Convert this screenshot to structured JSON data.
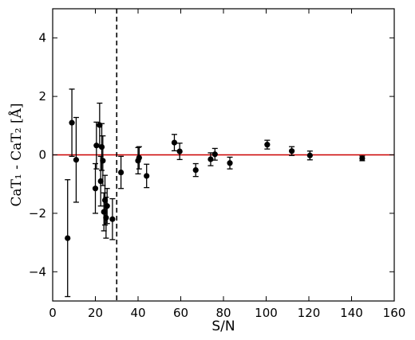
{
  "chart_data": {
    "type": "scatter",
    "title": "",
    "xlabel": "S/N",
    "ylabel": "CaT₁ - CaT₂ [Å]",
    "xlim": [
      0,
      160
    ],
    "ylim": [
      -5,
      5
    ],
    "xticks": [
      0,
      20,
      40,
      60,
      80,
      100,
      120,
      140,
      160
    ],
    "yticks": [
      -4,
      -2,
      0,
      2,
      4
    ],
    "x_tick_labels": [
      "0",
      "20",
      "40",
      "60",
      "80",
      "100",
      "120",
      "140",
      "160"
    ],
    "y_tick_labels": [
      "−4",
      "−2",
      "0",
      "2",
      "4"
    ],
    "grid": false,
    "reference_line": {
      "y": 0,
      "color": "#cc0000"
    },
    "threshold_line": {
      "x": 30,
      "style": "dashed"
    },
    "points": [
      {
        "x": 7,
        "y": -2.85,
        "err": 2.0
      },
      {
        "x": 9,
        "y": 1.1,
        "err": 1.15
      },
      {
        "x": 11,
        "y": -0.17,
        "err": 1.45
      },
      {
        "x": 20,
        "y": -1.15,
        "err": 0.85
      },
      {
        "x": 20.5,
        "y": 0.32,
        "err": 0.8
      },
      {
        "x": 22,
        "y": 1.02,
        "err": 0.75
      },
      {
        "x": 22.5,
        "y": -0.9,
        "err": 0.85
      },
      {
        "x": 23,
        "y": 0.27,
        "err": 0.8
      },
      {
        "x": 23.5,
        "y": -0.2,
        "err": 0.85
      },
      {
        "x": 24,
        "y": -1.95,
        "err": 0.65
      },
      {
        "x": 24.5,
        "y": -1.55,
        "err": 0.85
      },
      {
        "x": 25,
        "y": -2.15,
        "err": 0.7
      },
      {
        "x": 25.5,
        "y": -1.75,
        "err": 0.6
      },
      {
        "x": 28,
        "y": -2.2,
        "err": 0.7
      },
      {
        "x": 32,
        "y": -0.6,
        "err": 0.55
      },
      {
        "x": 40,
        "y": -0.2,
        "err": 0.45
      },
      {
        "x": 40.5,
        "y": -0.1,
        "err": 0.38
      },
      {
        "x": 44,
        "y": -0.72,
        "err": 0.4
      },
      {
        "x": 57,
        "y": 0.42,
        "err": 0.28
      },
      {
        "x": 59.5,
        "y": 0.12,
        "err": 0.28
      },
      {
        "x": 67,
        "y": -0.52,
        "err": 0.22
      },
      {
        "x": 74,
        "y": -0.15,
        "err": 0.22
      },
      {
        "x": 76,
        "y": 0.02,
        "err": 0.2
      },
      {
        "x": 83,
        "y": -0.28,
        "err": 0.2
      },
      {
        "x": 100.5,
        "y": 0.35,
        "err": 0.15
      },
      {
        "x": 112,
        "y": 0.13,
        "err": 0.15
      },
      {
        "x": 120.5,
        "y": -0.02,
        "err": 0.15
      },
      {
        "x": 145,
        "y": -0.12,
        "err": 0.08
      }
    ]
  }
}
